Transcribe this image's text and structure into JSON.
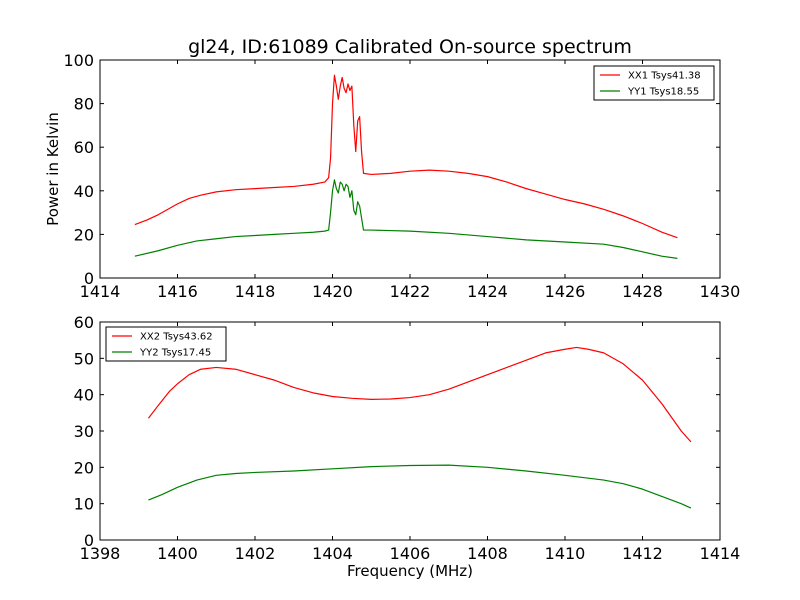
{
  "chart_data": [
    {
      "type": "line",
      "title": "gl24, ID:61089 Calibrated On-source spectrum",
      "xlabel": "",
      "ylabel": "Power in Kelvin",
      "xlim": [
        1414,
        1430
      ],
      "ylim": [
        0,
        100
      ],
      "xticks": [
        1414,
        1416,
        1418,
        1420,
        1422,
        1424,
        1426,
        1428,
        1430
      ],
      "yticks": [
        0,
        20,
        40,
        60,
        80,
        100
      ],
      "grid": false,
      "legend_position": "top-right",
      "series": [
        {
          "name": "XX1 Tsys41.38",
          "color": "#ff0000",
          "points": [
            [
              1414.9,
              24.5
            ],
            [
              1415.2,
              26.5
            ],
            [
              1415.5,
              29
            ],
            [
              1415.8,
              32
            ],
            [
              1416.0,
              34
            ],
            [
              1416.3,
              36.5
            ],
            [
              1416.6,
              38
            ],
            [
              1417.0,
              39.5
            ],
            [
              1417.5,
              40.5
            ],
            [
              1418.0,
              41
            ],
            [
              1418.5,
              41.5
            ],
            [
              1419.0,
              42
            ],
            [
              1419.5,
              43
            ],
            [
              1419.8,
              44
            ],
            [
              1419.9,
              46
            ],
            [
              1419.95,
              55
            ],
            [
              1420.0,
              80
            ],
            [
              1420.05,
              93
            ],
            [
              1420.1,
              88
            ],
            [
              1420.15,
              82
            ],
            [
              1420.2,
              88
            ],
            [
              1420.25,
              92
            ],
            [
              1420.3,
              87
            ],
            [
              1420.35,
              85
            ],
            [
              1420.4,
              89
            ],
            [
              1420.45,
              86
            ],
            [
              1420.5,
              88
            ],
            [
              1420.55,
              70
            ],
            [
              1420.6,
              58
            ],
            [
              1420.65,
              72
            ],
            [
              1420.7,
              74
            ],
            [
              1420.75,
              58
            ],
            [
              1420.8,
              48
            ],
            [
              1421.0,
              47.5
            ],
            [
              1421.5,
              48
            ],
            [
              1422.0,
              49
            ],
            [
              1422.5,
              49.5
            ],
            [
              1423.0,
              49
            ],
            [
              1423.5,
              48
            ],
            [
              1424.0,
              46.5
            ],
            [
              1424.5,
              44
            ],
            [
              1425.0,
              41
            ],
            [
              1425.5,
              38.5
            ],
            [
              1426.0,
              36
            ],
            [
              1426.5,
              34
            ],
            [
              1427.0,
              31.5
            ],
            [
              1427.5,
              28.5
            ],
            [
              1428.0,
              25
            ],
            [
              1428.5,
              21
            ],
            [
              1428.9,
              18.5
            ]
          ]
        },
        {
          "name": "YY1 Tsys18.55",
          "color": "#008000",
          "points": [
            [
              1414.9,
              10
            ],
            [
              1415.5,
              12.5
            ],
            [
              1416.0,
              15
            ],
            [
              1416.5,
              17
            ],
            [
              1417.0,
              18
            ],
            [
              1417.5,
              19
            ],
            [
              1418.0,
              19.5
            ],
            [
              1418.5,
              20
            ],
            [
              1419.0,
              20.5
            ],
            [
              1419.5,
              21
            ],
            [
              1419.8,
              21.5
            ],
            [
              1419.9,
              22
            ],
            [
              1419.95,
              30
            ],
            [
              1420.0,
              40
            ],
            [
              1420.05,
              45
            ],
            [
              1420.1,
              41
            ],
            [
              1420.15,
              39
            ],
            [
              1420.2,
              44
            ],
            [
              1420.25,
              43
            ],
            [
              1420.3,
              40
            ],
            [
              1420.35,
              43
            ],
            [
              1420.4,
              42
            ],
            [
              1420.45,
              37
            ],
            [
              1420.5,
              40
            ],
            [
              1420.55,
              31
            ],
            [
              1420.6,
              29
            ],
            [
              1420.65,
              35
            ],
            [
              1420.7,
              33
            ],
            [
              1420.8,
              22
            ],
            [
              1421.0,
              22
            ],
            [
              1422.0,
              21.5
            ],
            [
              1423.0,
              20.5
            ],
            [
              1424.0,
              19
            ],
            [
              1425.0,
              17.5
            ],
            [
              1426.0,
              16.5
            ],
            [
              1427.0,
              15.5
            ],
            [
              1427.5,
              14
            ],
            [
              1428.0,
              12
            ],
            [
              1428.5,
              10
            ],
            [
              1428.9,
              9
            ]
          ]
        }
      ]
    },
    {
      "type": "line",
      "title": "",
      "xlabel": "Frequency (MHz)",
      "ylabel": "",
      "xlim": [
        1398,
        1414
      ],
      "ylim": [
        0,
        60
      ],
      "xticks": [
        1398,
        1400,
        1402,
        1404,
        1406,
        1408,
        1410,
        1412,
        1414
      ],
      "yticks": [
        0,
        10,
        20,
        30,
        40,
        50,
        60
      ],
      "grid": false,
      "legend_position": "top-left",
      "series": [
        {
          "name": "XX2 Tsys43.62",
          "color": "#ff0000",
          "points": [
            [
              1399.25,
              33.5
            ],
            [
              1399.5,
              37
            ],
            [
              1399.8,
              41
            ],
            [
              1400.0,
              43
            ],
            [
              1400.3,
              45.5
            ],
            [
              1400.6,
              47
            ],
            [
              1401.0,
              47.5
            ],
            [
              1401.5,
              47
            ],
            [
              1402.0,
              45.5
            ],
            [
              1402.5,
              44
            ],
            [
              1403.0,
              42
            ],
            [
              1403.5,
              40.5
            ],
            [
              1404.0,
              39.5
            ],
            [
              1404.5,
              39
            ],
            [
              1405.0,
              38.7
            ],
            [
              1405.5,
              38.8
            ],
            [
              1406.0,
              39.2
            ],
            [
              1406.5,
              40
            ],
            [
              1407.0,
              41.5
            ],
            [
              1407.5,
              43.5
            ],
            [
              1408.0,
              45.5
            ],
            [
              1408.5,
              47.5
            ],
            [
              1409.0,
              49.5
            ],
            [
              1409.5,
              51.5
            ],
            [
              1410.0,
              52.5
            ],
            [
              1410.3,
              53
            ],
            [
              1410.6,
              52.5
            ],
            [
              1411.0,
              51.5
            ],
            [
              1411.5,
              48.5
            ],
            [
              1412.0,
              44
            ],
            [
              1412.5,
              37.5
            ],
            [
              1413.0,
              30
            ],
            [
              1413.25,
              27
            ]
          ]
        },
        {
          "name": "YY2 Tsys17.45",
          "color": "#008000",
          "points": [
            [
              1399.25,
              11
            ],
            [
              1399.6,
              12.5
            ],
            [
              1400.0,
              14.5
            ],
            [
              1400.5,
              16.5
            ],
            [
              1401.0,
              17.8
            ],
            [
              1401.5,
              18.3
            ],
            [
              1402.0,
              18.6
            ],
            [
              1403.0,
              19
            ],
            [
              1404.0,
              19.6
            ],
            [
              1405.0,
              20.2
            ],
            [
              1406.0,
              20.5
            ],
            [
              1407.0,
              20.6
            ],
            [
              1408.0,
              20
            ],
            [
              1409.0,
              19
            ],
            [
              1410.0,
              17.8
            ],
            [
              1411.0,
              16.5
            ],
            [
              1411.5,
              15.5
            ],
            [
              1412.0,
              14
            ],
            [
              1412.5,
              12
            ],
            [
              1413.0,
              10
            ],
            [
              1413.25,
              8.8
            ]
          ]
        }
      ]
    }
  ]
}
